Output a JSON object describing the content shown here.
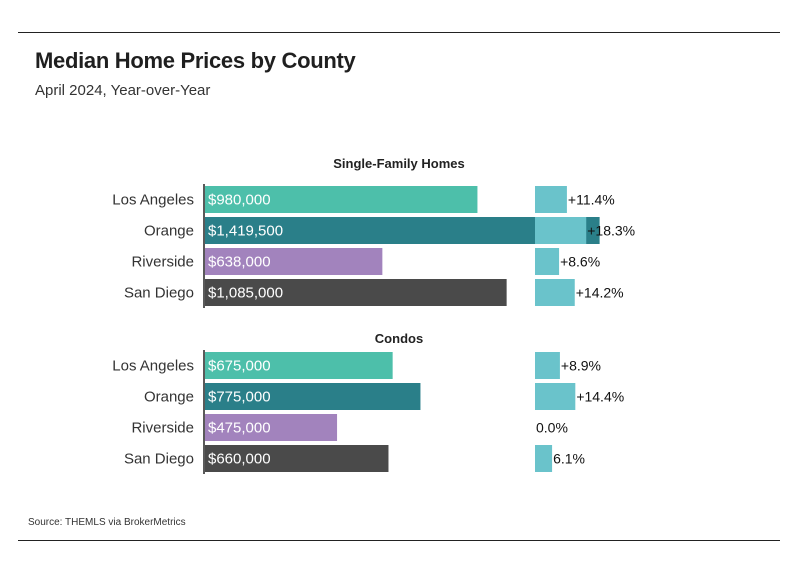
{
  "title": "Median Home Prices by County",
  "subtitle": "April 2024, Year-over-Year",
  "source": "Source:  THEMLS via BrokerMetrics",
  "colors": {
    "Los Angeles": "#4dbfaa",
    "Orange": "#2a7f89",
    "Riverside": "#a283bd",
    "San Diego": "#4a4a4a",
    "change_bar": "#6ac3cb"
  },
  "chart_data": {
    "type": "bar",
    "orientation": "horizontal",
    "categories": [
      "Los Angeles",
      "Orange",
      "Riverside",
      "San Diego"
    ],
    "price_axis_max": 2000000,
    "change_axis_max": 30,
    "panels": [
      {
        "title": "Single-Family Homes",
        "prices": [
          980000,
          1419500,
          638000,
          1085000
        ],
        "price_labels": [
          "$980,000",
          "$1,419,500",
          "$638,000",
          "$1,085,000"
        ],
        "changes": [
          11.4,
          18.3,
          8.6,
          14.2
        ],
        "change_labels": [
          "+11.4%",
          "+18.3%",
          "+8.6%",
          "+14.2%"
        ]
      },
      {
        "title": "Condos",
        "prices": [
          675000,
          775000,
          475000,
          660000
        ],
        "price_labels": [
          "$675,000",
          "$775,000",
          "$475,000",
          "$660,000"
        ],
        "changes": [
          8.9,
          14.4,
          0.0,
          6.1
        ],
        "change_labels": [
          "+8.9%",
          "+14.4%",
          "0.0%",
          "6.1%"
        ]
      }
    ]
  }
}
